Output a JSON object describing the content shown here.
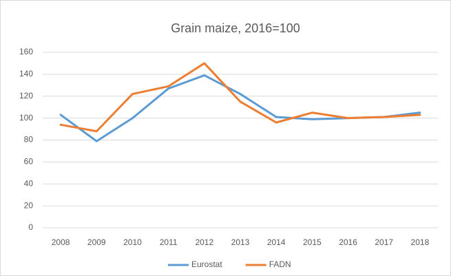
{
  "chart_data": {
    "type": "line",
    "title": "Grain maize, 2016=100",
    "categories": [
      "2008",
      "2009",
      "2010",
      "2011",
      "2012",
      "2013",
      "2014",
      "2015",
      "2016",
      "2017",
      "2018"
    ],
    "series": [
      {
        "name": "Eurostat",
        "color": "#5b9bd5",
        "values": [
          103,
          79,
          100,
          127,
          139,
          122,
          101,
          99,
          100,
          101,
          105
        ]
      },
      {
        "name": "FADN",
        "color": "#ed7d31",
        "values": [
          94,
          88,
          122,
          129,
          150,
          115,
          96,
          105,
          100,
          101,
          103
        ]
      }
    ],
    "ylim": [
      0,
      160
    ],
    "yticks": [
      0,
      20,
      40,
      60,
      80,
      100,
      120,
      140,
      160
    ],
    "grid": true,
    "legend": "bottom"
  }
}
